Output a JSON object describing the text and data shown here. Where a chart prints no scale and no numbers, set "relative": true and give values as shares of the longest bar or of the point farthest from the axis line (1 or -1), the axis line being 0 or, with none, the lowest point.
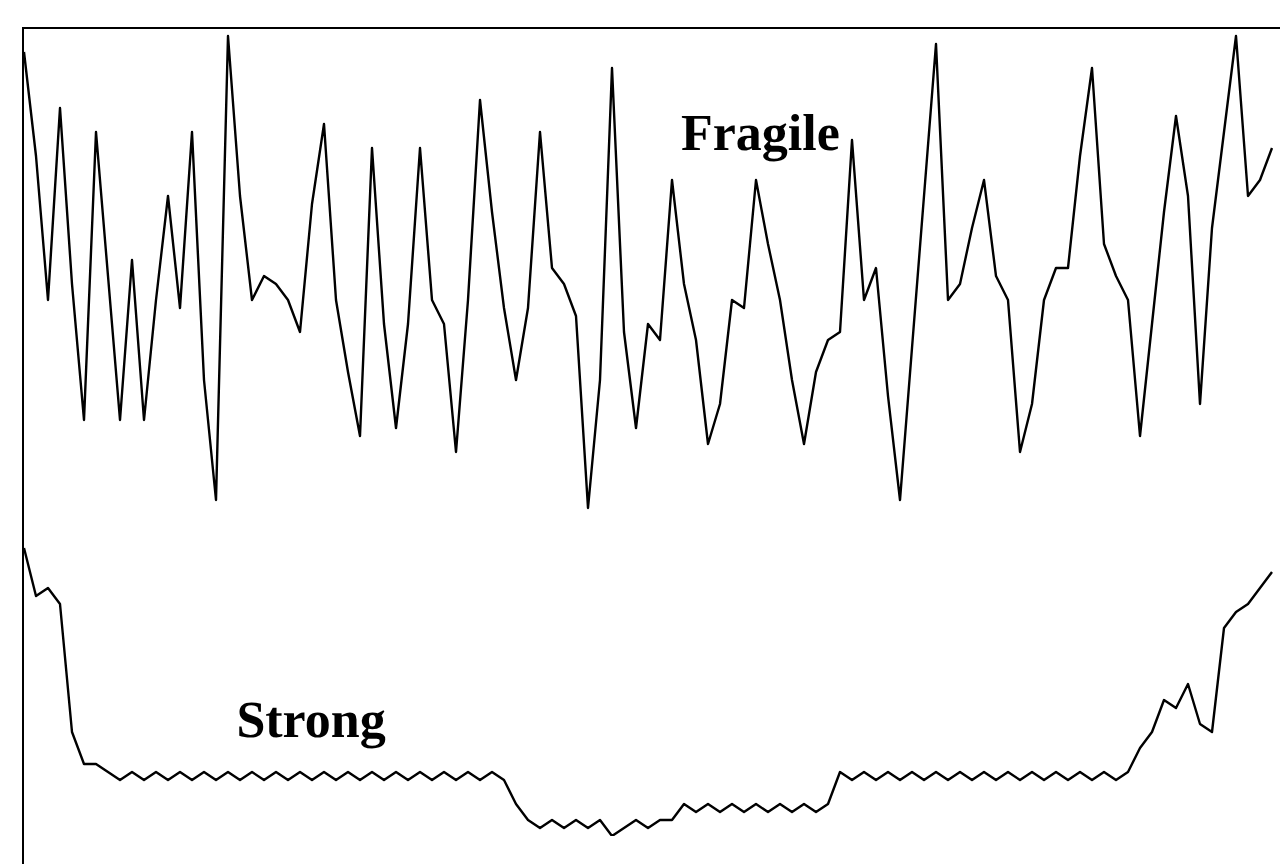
{
  "chart_data": {
    "type": "line",
    "relative": true,
    "marker": "none",
    "line_style": "solid",
    "legend": false,
    "tick_labels": false,
    "categories": [
      null,
      null,
      null,
      null,
      null,
      null,
      null,
      null,
      null,
      null,
      null,
      null,
      null,
      null,
      null,
      null,
      null,
      null,
      null,
      null,
      null,
      null,
      null,
      null,
      null,
      null,
      null,
      null,
      null,
      null,
      null,
      null,
      null,
      null,
      null,
      null,
      null,
      null,
      null,
      null,
      null,
      null,
      null,
      null,
      null,
      null,
      null,
      null,
      null,
      null,
      null,
      null,
      null,
      null,
      null,
      null,
      null,
      null,
      null,
      null,
      null,
      null,
      null,
      null,
      null,
      null,
      null,
      null,
      null,
      null,
      null,
      null,
      null,
      null,
      null,
      null,
      null,
      null,
      null,
      null,
      null,
      null,
      null,
      null,
      null,
      null,
      null,
      null,
      null,
      null,
      null,
      null,
      null,
      null,
      null,
      null,
      null,
      null,
      null,
      null,
      null,
      null,
      null,
      null,
      null
    ],
    "series": [
      {
        "name": "Fragile",
        "color": "#000000",
        "values": [
          0.98,
          0.85,
          0.67,
          0.91,
          0.69,
          0.52,
          0.88,
          0.7,
          0.52,
          0.72,
          0.52,
          0.67,
          0.8,
          0.66,
          0.88,
          0.57,
          0.42,
          1.0,
          0.8,
          0.67,
          0.7,
          0.69,
          0.67,
          0.63,
          0.79,
          0.89,
          0.67,
          0.58,
          0.5,
          0.86,
          0.64,
          0.51,
          0.64,
          0.86,
          0.67,
          0.64,
          0.48,
          0.67,
          0.92,
          0.78,
          0.66,
          0.57,
          0.66,
          0.88,
          0.71,
          0.69,
          0.65,
          0.41,
          0.57,
          0.96,
          0.63,
          0.51,
          0.64,
          0.62,
          0.82,
          0.69,
          0.62,
          0.49,
          0.54,
          0.67,
          0.66,
          0.82,
          0.74,
          0.67,
          0.57,
          0.49,
          0.58,
          0.62,
          0.63,
          0.87,
          0.67,
          0.71,
          0.55,
          0.42,
          0.61,
          0.8,
          0.99,
          0.67,
          0.69,
          0.76,
          0.82,
          0.7,
          0.67,
          0.48,
          0.54,
          0.67,
          0.71,
          0.71,
          0.85,
          0.96,
          0.74,
          0.7,
          0.67,
          0.5,
          0.64,
          0.78,
          0.9,
          0.8,
          0.54,
          0.76,
          0.88,
          1.0,
          0.8,
          0.82,
          0.86
        ]
      },
      {
        "name": "Strong",
        "color": "#000000",
        "values": [
          0.36,
          0.3,
          0.31,
          0.29,
          0.13,
          0.09,
          0.09,
          0.08,
          0.07,
          0.08,
          0.07,
          0.08,
          0.07,
          0.08,
          0.07,
          0.08,
          0.07,
          0.08,
          0.07,
          0.08,
          0.07,
          0.08,
          0.07,
          0.08,
          0.07,
          0.08,
          0.07,
          0.08,
          0.07,
          0.08,
          0.07,
          0.08,
          0.07,
          0.08,
          0.07,
          0.08,
          0.07,
          0.08,
          0.07,
          0.08,
          0.07,
          0.04,
          0.02,
          0.01,
          0.02,
          0.01,
          0.02,
          0.01,
          0.02,
          0,
          0.01,
          0.02,
          0.01,
          0.02,
          0.02,
          0.04,
          0.03,
          0.04,
          0.03,
          0.04,
          0.03,
          0.04,
          0.03,
          0.04,
          0.03,
          0.04,
          0.03,
          0.04,
          0.08,
          0.07,
          0.08,
          0.07,
          0.08,
          0.07,
          0.08,
          0.07,
          0.08,
          0.07,
          0.08,
          0.07,
          0.08,
          0.07,
          0.08,
          0.07,
          0.08,
          0.07,
          0.08,
          0.07,
          0.08,
          0.07,
          0.08,
          0.07,
          0.08,
          0.11,
          0.13,
          0.17,
          0.16,
          0.19,
          0.14,
          0.13,
          0.26,
          0.28,
          0.29,
          0.31,
          0.33
        ]
      }
    ]
  }
}
